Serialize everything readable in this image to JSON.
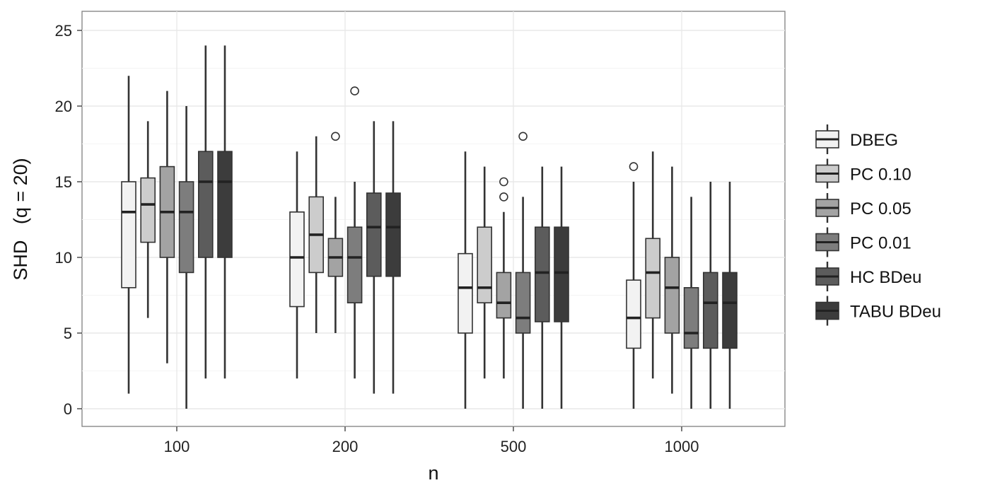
{
  "chart_data": {
    "type": "boxplot",
    "xlabel": "n",
    "ylabel": "SHD   (q = 20)",
    "ylim": [
      -1.2,
      26.2
    ],
    "yticks": [
      0,
      5,
      10,
      15,
      20,
      25
    ],
    "categories": [
      "100",
      "200",
      "500",
      "1000"
    ],
    "grid": true,
    "legend_position": "right",
    "series": [
      {
        "name": "DBEG",
        "color": "#f2f2f2",
        "boxes": [
          {
            "min": 1,
            "q1": 8,
            "median": 13,
            "q3": 15,
            "max": 22,
            "outliers": []
          },
          {
            "min": 2,
            "q1": 6.75,
            "median": 10,
            "q3": 13,
            "max": 17,
            "outliers": []
          },
          {
            "min": 0,
            "q1": 5,
            "median": 8,
            "q3": 10.25,
            "max": 17,
            "outliers": []
          },
          {
            "min": 0,
            "q1": 4,
            "median": 6,
            "q3": 8.5,
            "max": 15,
            "outliers": [
              16
            ]
          }
        ]
      },
      {
        "name": "PC 0.10",
        "color": "#cccccc",
        "boxes": [
          {
            "min": 6,
            "q1": 11,
            "median": 13.5,
            "q3": 15.25,
            "max": 19,
            "outliers": []
          },
          {
            "min": 5,
            "q1": 9,
            "median": 11.5,
            "q3": 14,
            "max": 18,
            "outliers": []
          },
          {
            "min": 2,
            "q1": 7,
            "median": 8,
            "q3": 12,
            "max": 16,
            "outliers": []
          },
          {
            "min": 2,
            "q1": 6,
            "median": 9,
            "q3": 11.25,
            "max": 17,
            "outliers": []
          }
        ]
      },
      {
        "name": "PC 0.05",
        "color": "#a3a3a3",
        "boxes": [
          {
            "min": 3,
            "q1": 10,
            "median": 13,
            "q3": 16,
            "max": 21,
            "outliers": []
          },
          {
            "min": 5,
            "q1": 8.75,
            "median": 10,
            "q3": 11.25,
            "max": 14,
            "outliers": [
              18
            ]
          },
          {
            "min": 2,
            "q1": 6,
            "median": 7,
            "q3": 9,
            "max": 13,
            "outliers": [
              14,
              15
            ]
          },
          {
            "min": 1,
            "q1": 5,
            "median": 8,
            "q3": 10,
            "max": 16,
            "outliers": []
          }
        ]
      },
      {
        "name": "PC 0.01",
        "color": "#7d7d7d",
        "boxes": [
          {
            "min": 0,
            "q1": 9,
            "median": 13,
            "q3": 15,
            "max": 20,
            "outliers": []
          },
          {
            "min": 2,
            "q1": 7,
            "median": 10,
            "q3": 12,
            "max": 15,
            "outliers": [
              21
            ]
          },
          {
            "min": 0,
            "q1": 5,
            "median": 6,
            "q3": 9,
            "max": 14,
            "outliers": [
              18
            ]
          },
          {
            "min": 0,
            "q1": 4,
            "median": 5,
            "q3": 8,
            "max": 14,
            "outliers": []
          }
        ]
      },
      {
        "name": "HC BDeu",
        "color": "#5c5c5c",
        "boxes": [
          {
            "min": 2,
            "q1": 10,
            "median": 15,
            "q3": 17,
            "max": 24,
            "outliers": []
          },
          {
            "min": 1,
            "q1": 8.75,
            "median": 12,
            "q3": 14.25,
            "max": 19,
            "outliers": []
          },
          {
            "min": 0,
            "q1": 5.75,
            "median": 9,
            "q3": 12,
            "max": 16,
            "outliers": []
          },
          {
            "min": 0,
            "q1": 4,
            "median": 7,
            "q3": 9,
            "max": 15,
            "outliers": []
          }
        ]
      },
      {
        "name": "TABU BDeu",
        "color": "#3c3c3c",
        "boxes": [
          {
            "min": 2,
            "q1": 10,
            "median": 15,
            "q3": 17,
            "max": 24,
            "outliers": []
          },
          {
            "min": 1,
            "q1": 8.75,
            "median": 12,
            "q3": 14.25,
            "max": 19,
            "outliers": []
          },
          {
            "min": 0,
            "q1": 5.75,
            "median": 9,
            "q3": 12,
            "max": 16,
            "outliers": []
          },
          {
            "min": 0,
            "q1": 4,
            "median": 7,
            "q3": 9,
            "max": 15,
            "outliers": []
          }
        ]
      }
    ]
  }
}
